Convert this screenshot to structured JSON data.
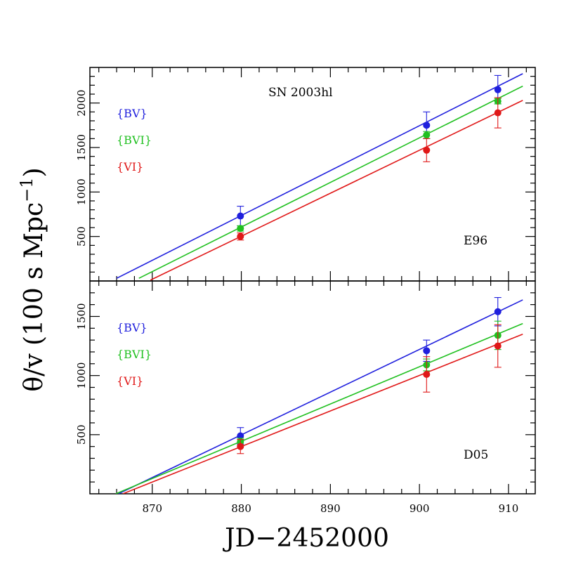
{
  "chart_data": {
    "type": "scatter",
    "x": [
      879.9,
      900.8,
      908.8
    ],
    "xlabel": "JD−2452000",
    "ylabel": "θ/v (100 s Mpc",
    "ylabel_sup": "−1",
    "ylabel_close": ")",
    "xlim": [
      863,
      913
    ],
    "x_ticks": [
      870,
      880,
      890,
      900,
      910
    ],
    "x_tick_labels": [
      "870",
      "880",
      "890",
      "900",
      "910"
    ],
    "grid": false,
    "panels": [
      {
        "title": "SN 2003hl",
        "label": "E96",
        "ylim": [
          0,
          2400
        ],
        "y_ticks": [
          500,
          1000,
          1500,
          2000
        ],
        "y_tick_labels": [
          "500",
          "1000",
          "1500",
          "2000"
        ],
        "legend": [
          "{BV}",
          "{BVI}",
          "{VI}"
        ],
        "series": [
          {
            "name": "{BV}",
            "color": "#1f1fdd",
            "y": [
              730,
              1750,
              2150
            ],
            "yerr": [
              110,
              150,
              160
            ],
            "fit_x": [
              866,
              911.6
            ],
            "fit_y": [
              30,
              2330
            ]
          },
          {
            "name": "{BVI}",
            "color": "#20c020",
            "y": [
              590,
              1640,
              2020
            ],
            "yerr": [
              30,
              40,
              30
            ],
            "fit_x": [
              868.5,
              911.6
            ],
            "fit_y": [
              30,
              2190
            ]
          },
          {
            "name": "{VI}",
            "color": "#e01818",
            "y": [
              500,
              1470,
              1890
            ],
            "yerr": [
              40,
              130,
              170
            ],
            "fit_x": [
              869.8,
              911.6
            ],
            "fit_y": [
              10,
              2030
            ]
          }
        ]
      },
      {
        "title": "",
        "label": "D05",
        "ylim": [
          0,
          1800
        ],
        "y_ticks": [
          500,
          1000,
          1500
        ],
        "y_tick_labels": [
          "500",
          "1000",
          "1500"
        ],
        "legend": [
          "{BV}",
          "{BVI}",
          "{VI}"
        ],
        "series": [
          {
            "name": "{BV}",
            "color": "#1f1fdd",
            "y": [
              490,
              1210,
              1540
            ],
            "yerr": [
              70,
              90,
              120
            ],
            "fit_x": [
              866.2,
              911.6
            ],
            "fit_y": [
              0,
              1640
            ]
          },
          {
            "name": "{BVI}",
            "color": "#20c020",
            "y": [
              440,
              1090,
              1340
            ],
            "yerr": [
              30,
              50,
              120
            ],
            "fit_x": [
              865.9,
              911.6
            ],
            "fit_y": [
              0,
              1440
            ]
          },
          {
            "name": "{VI}",
            "color": "#e01818",
            "y": [
              400,
              1010,
              1250
            ],
            "yerr": [
              60,
              150,
              180
            ],
            "fit_x": [
              866.7,
              911.6
            ],
            "fit_y": [
              0,
              1350
            ]
          }
        ]
      }
    ]
  }
}
